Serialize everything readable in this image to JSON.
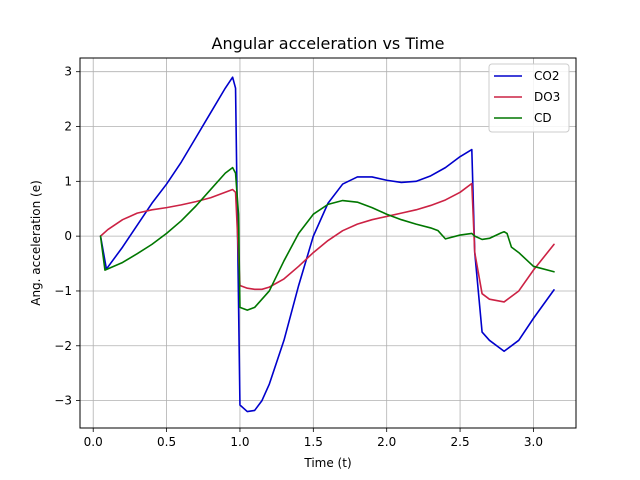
{
  "chart_data": {
    "type": "line",
    "title": "Angular acceleration vs Time",
    "xlabel": "Time (t)",
    "ylabel": "Ang. acceleration (e)",
    "xlim": [
      -0.09,
      3.29
    ],
    "ylim": [
      -3.5,
      3.25
    ],
    "xticks": [
      0.0,
      0.5,
      1.0,
      1.5,
      2.0,
      2.5,
      3.0
    ],
    "xtick_labels": [
      "0.0",
      "0.5",
      "1.0",
      "1.5",
      "2.0",
      "2.5",
      "3.0"
    ],
    "yticks": [
      -3,
      -2,
      -1,
      0,
      1,
      2,
      3
    ],
    "ytick_labels": [
      "−3",
      "−2",
      "−1",
      "0",
      "1",
      "2",
      "3"
    ],
    "grid": true,
    "legend_position": "top-right",
    "series": [
      {
        "name": "CO2",
        "color": "#0000cc",
        "x": [
          0.05,
          0.09,
          0.2,
          0.3,
          0.4,
          0.5,
          0.6,
          0.7,
          0.8,
          0.9,
          0.95,
          0.97,
          1.0,
          1.05,
          1.1,
          1.15,
          1.2,
          1.3,
          1.4,
          1.5,
          1.6,
          1.7,
          1.8,
          1.9,
          2.0,
          2.1,
          2.2,
          2.3,
          2.4,
          2.5,
          2.58,
          2.6,
          2.65,
          2.7,
          2.8,
          2.9,
          3.0,
          3.14
        ],
        "y": [
          0.0,
          -0.6,
          -0.2,
          0.2,
          0.6,
          0.95,
          1.35,
          1.8,
          2.25,
          2.7,
          2.9,
          2.7,
          -3.08,
          -3.2,
          -3.18,
          -3.0,
          -2.7,
          -1.9,
          -0.9,
          0.0,
          0.6,
          0.95,
          1.08,
          1.08,
          1.02,
          0.98,
          1.0,
          1.1,
          1.25,
          1.45,
          1.58,
          -0.3,
          -1.75,
          -1.9,
          -2.1,
          -1.9,
          -1.5,
          -0.98
        ]
      },
      {
        "name": "DO3",
        "color": "#cc2244",
        "x": [
          0.05,
          0.1,
          0.2,
          0.3,
          0.4,
          0.5,
          0.6,
          0.7,
          0.8,
          0.9,
          0.95,
          0.97,
          1.0,
          1.05,
          1.1,
          1.15,
          1.2,
          1.3,
          1.4,
          1.5,
          1.6,
          1.7,
          1.8,
          1.9,
          2.0,
          2.1,
          2.2,
          2.3,
          2.4,
          2.5,
          2.58,
          2.6,
          2.65,
          2.7,
          2.8,
          2.9,
          3.0,
          3.14
        ],
        "y": [
          0.0,
          0.12,
          0.3,
          0.42,
          0.48,
          0.52,
          0.57,
          0.63,
          0.7,
          0.8,
          0.85,
          0.8,
          -0.9,
          -0.95,
          -0.97,
          -0.97,
          -0.93,
          -0.78,
          -0.55,
          -0.3,
          -0.08,
          0.1,
          0.22,
          0.3,
          0.36,
          0.42,
          0.48,
          0.56,
          0.66,
          0.8,
          0.96,
          -0.3,
          -1.05,
          -1.15,
          -1.2,
          -1.0,
          -0.62,
          -0.15
        ]
      },
      {
        "name": "CD",
        "color": "#007700",
        "x": [
          0.05,
          0.08,
          0.2,
          0.3,
          0.4,
          0.5,
          0.6,
          0.7,
          0.8,
          0.9,
          0.95,
          0.97,
          0.99,
          1.0,
          1.05,
          1.1,
          1.2,
          1.3,
          1.4,
          1.5,
          1.6,
          1.7,
          1.8,
          1.9,
          2.0,
          2.1,
          2.2,
          2.3,
          2.35,
          2.4,
          2.5,
          2.58,
          2.6,
          2.65,
          2.7,
          2.78,
          2.8,
          2.82,
          2.85,
          2.9,
          3.0,
          3.14
        ],
        "y": [
          0.0,
          -0.62,
          -0.48,
          -0.32,
          -0.15,
          0.05,
          0.28,
          0.55,
          0.85,
          1.15,
          1.25,
          1.15,
          0.4,
          -1.3,
          -1.35,
          -1.3,
          -1.0,
          -0.45,
          0.05,
          0.4,
          0.58,
          0.65,
          0.62,
          0.52,
          0.4,
          0.3,
          0.22,
          0.15,
          0.1,
          -0.05,
          0.02,
          0.05,
          0.0,
          -0.06,
          -0.04,
          0.06,
          0.08,
          0.05,
          -0.2,
          -0.3,
          -0.55,
          -0.65
        ]
      }
    ]
  }
}
